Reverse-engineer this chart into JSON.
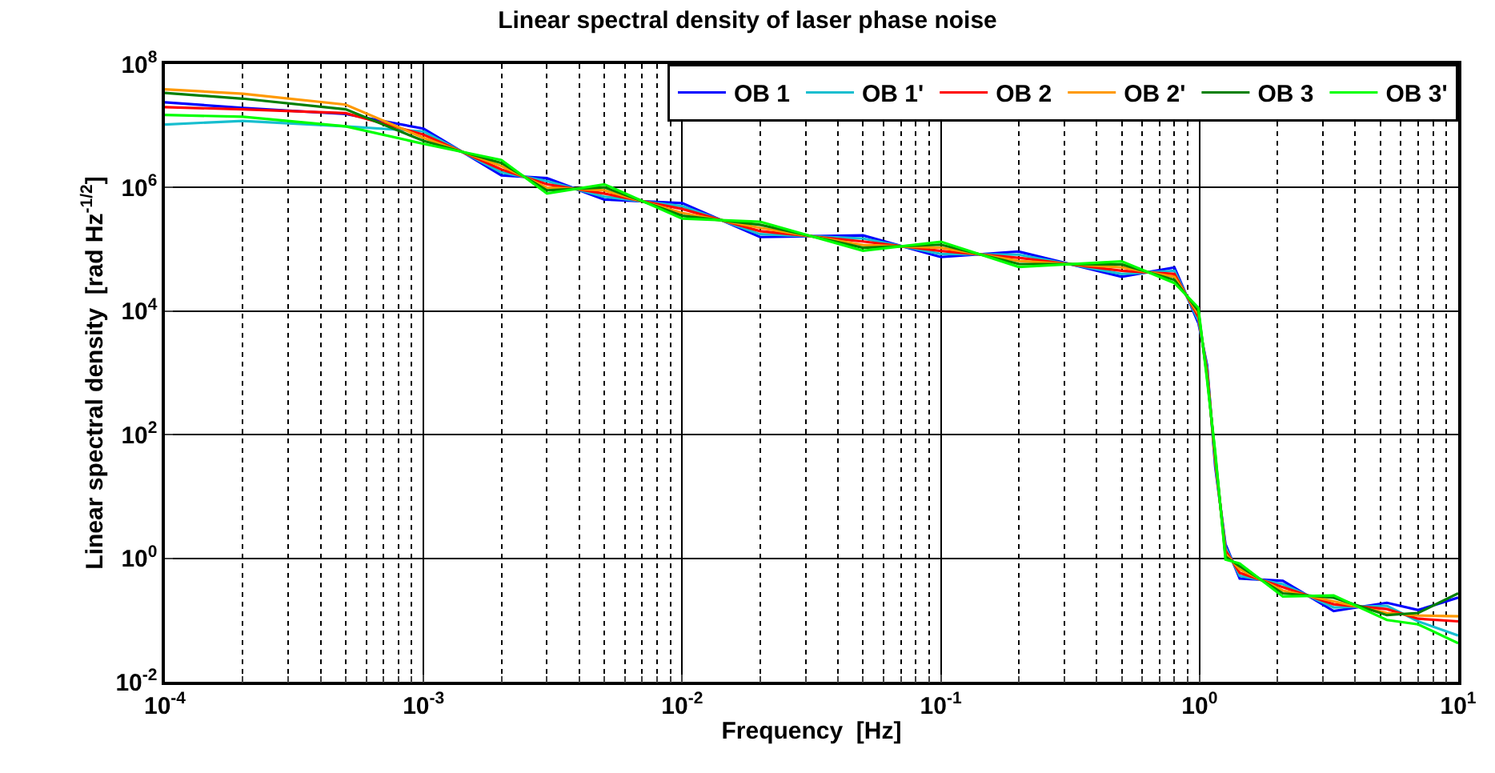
{
  "chart_data": {
    "type": "line",
    "title": "Linear spectral density of laser phase noise",
    "xlabel": "Frequency  [Hz]",
    "ylabel": "Linear spectral density  [rad Hz$^{-1/2}$]",
    "x": [
      0.0001,
      0.0002,
      0.0005,
      0.001,
      0.002,
      0.003,
      0.005,
      0.01,
      0.02,
      0.05,
      0.1,
      0.2,
      0.5,
      0.8,
      0.99,
      1.07,
      1.15,
      1.26,
      1.43,
      2.1,
      3.3,
      5.3,
      7,
      10
    ],
    "series": [
      {
        "name": "OB 1",
        "color": "#0000ff",
        "values": [
          24000000.0,
          19500000.0,
          15500000.0,
          9000000.0,
          1580000.0,
          1420000.0,
          640000.0,
          560000.0,
          158000.0,
          168000.0,
          75000.0,
          92000.0,
          36000.0,
          51000.0,
          6400.0,
          1330,
          30,
          1.68,
          0.47,
          0.43,
          0.14,
          0.19,
          0.145,
          0.23
        ]
      },
      {
        "name": "OB 1'",
        "color": "#17becf",
        "values": [
          10500000.0,
          12000000.0,
          9800000.0,
          8100000.0,
          1760000.0,
          1270000.0,
          710000.0,
          500000.0,
          176000.0,
          150000.0,
          84000.0,
          82000.0,
          40000.0,
          45000.0,
          7100.0,
          1190,
          34,
          1.5,
          0.52,
          0.38,
          0.16,
          0.17,
          0.095,
          0.056
        ]
      },
      {
        "name": "OB 2",
        "color": "#ff0000",
        "values": [
          20000000.0,
          18500000.0,
          16000000.0,
          7200000.0,
          1970000.0,
          1130000.0,
          800000.0,
          450000.0,
          197000.0,
          134000.0,
          94000.0,
          73000.0,
          45000.0,
          40000.0,
          8000.0,
          1060,
          38,
          1.34,
          0.58,
          0.34,
          0.18,
          0.15,
          0.105,
          0.095
        ]
      },
      {
        "name": "OB 2'",
        "color": "#ff9900",
        "values": [
          39000000.0,
          33000000.0,
          22000000.0,
          6400000.0,
          2230000.0,
          1000000.0,
          900000.0,
          390000.0,
          223000.0,
          118000.0,
          106000.0,
          65000.0,
          51000.0,
          36000.0,
          9000.0,
          940,
          42,
          1.18,
          0.66,
          0.3,
          0.2,
          0.13,
          0.118,
          0.115
        ]
      },
      {
        "name": "OB 3",
        "color": "#007f00",
        "values": [
          34000000.0,
          27500000.0,
          18500000.0,
          5700000.0,
          2500000.0,
          900000.0,
          1010000.0,
          350000.0,
          250000.0,
          106000.0,
          119000.0,
          58000.0,
          57000.0,
          32000.0,
          10100.0,
          840,
          48,
          1.06,
          0.74,
          0.27,
          0.23,
          0.12,
          0.13,
          0.27
        ]
      },
      {
        "name": "OB 3'",
        "color": "#00ff00",
        "values": [
          15000000.0,
          14000000.0,
          9800000.0,
          5100000.0,
          2800000.0,
          800000.0,
          1130000.0,
          315000.0,
          280000.0,
          95000.0,
          133000.0,
          52000.0,
          64000.0,
          28500.0,
          11300.0,
          750,
          53,
          0.95,
          0.82,
          0.24,
          0.25,
          0.1,
          0.085,
          0.042
        ]
      }
    ],
    "log": "xy",
    "xlim": [
      0.0001,
      10
    ],
    "ylim": [
      0.01,
      100000000
    ],
    "xticks": [
      {
        "value": 0.0001,
        "label": "10$^{-4}$"
      },
      {
        "value": 0.001,
        "label": "10$^{-3}$"
      },
      {
        "value": 0.01,
        "label": "10$^{-2}$"
      },
      {
        "value": 0.1,
        "label": "10$^{-1}$"
      },
      {
        "value": 1,
        "label": "10$^{0}$"
      },
      {
        "value": 10,
        "label": "10$^{1}$"
      }
    ],
    "yticks": [
      {
        "value": 0.01,
        "label": "10$^{-2}$"
      },
      {
        "value": 1,
        "label": "10$^{0}$"
      },
      {
        "value": 100,
        "label": "10$^{2}$"
      },
      {
        "value": 10000,
        "label": "10$^{4}$"
      },
      {
        "value": 1000000,
        "label": "10$^{6}$"
      },
      {
        "value": 100000000,
        "label": "10$^{8}$"
      }
    ],
    "grid": true,
    "legend": "top right",
    "line_style": "solid",
    "marker": "none"
  }
}
